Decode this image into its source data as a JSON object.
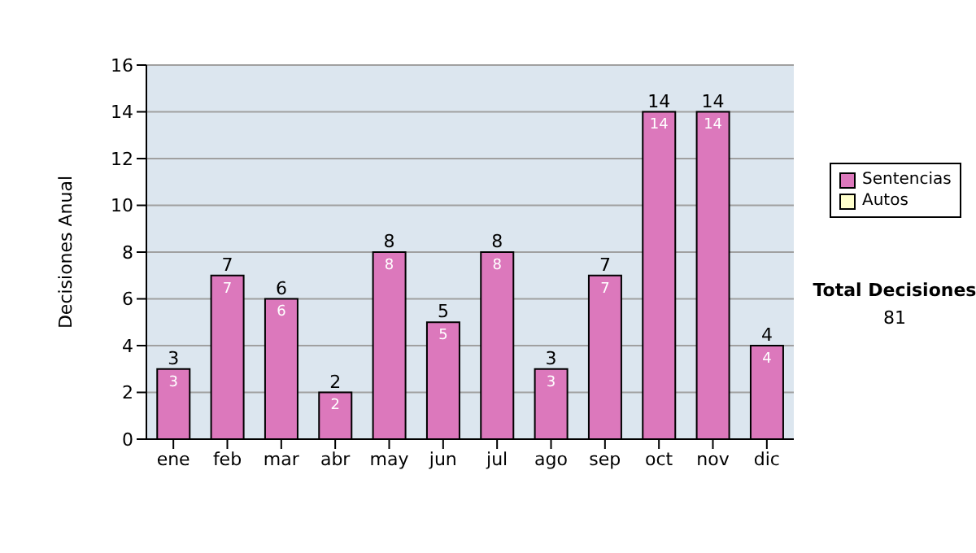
{
  "chart_data": {
    "type": "bar",
    "ylabel": "Decisiones Anual",
    "categories": [
      "ene",
      "feb",
      "mar",
      "abr",
      "may",
      "jun",
      "jul",
      "ago",
      "sep",
      "oct",
      "nov",
      "dic"
    ],
    "series": [
      {
        "name": "Sentencias",
        "color": "#dc78bc",
        "values": [
          3,
          7,
          6,
          2,
          8,
          5,
          8,
          3,
          7,
          14,
          14,
          4
        ],
        "value_labels": [
          "3",
          "7",
          "6",
          "2",
          "8",
          "5",
          "8",
          "3",
          "7",
          "14",
          "14",
          "4"
        ]
      },
      {
        "name": "Autos",
        "color": "#ffffcc",
        "values": [
          0,
          0,
          0,
          0,
          0,
          0,
          0,
          0,
          0,
          0,
          0,
          0
        ]
      }
    ],
    "stacked": true,
    "totals": [
      "3",
      "7",
      "6",
      "2",
      "8",
      "5",
      "8",
      "3",
      "7",
      "14",
      "14",
      "4"
    ],
    "ylim": [
      0,
      16
    ],
    "yticks": [
      0,
      2,
      4,
      6,
      8,
      10,
      12,
      14,
      16
    ],
    "grid": "y",
    "legend": "right",
    "annotations": [
      "Total Decisiones",
      "81"
    ]
  }
}
